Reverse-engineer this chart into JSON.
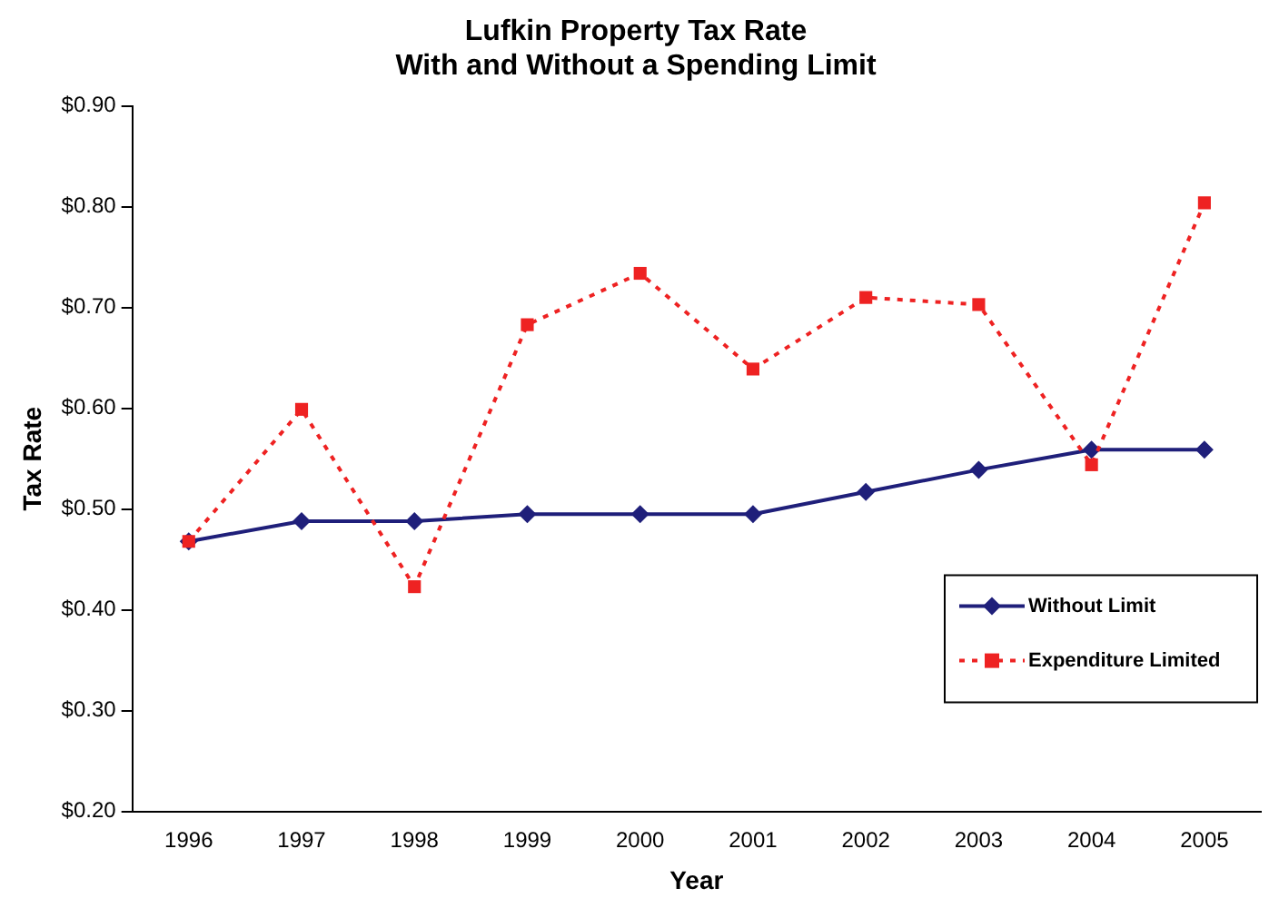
{
  "chart_data": {
    "type": "line",
    "title": "Lufkin Property Tax Rate\nWith and Without a Spending Limit",
    "xlabel": "Year",
    "ylabel": "Tax Rate",
    "categories": [
      "1996",
      "1997",
      "1998",
      "1999",
      "2000",
      "2001",
      "2002",
      "2003",
      "2004",
      "2005"
    ],
    "series": [
      {
        "name": "Without Limit",
        "color": "#1f1f7a",
        "marker": "diamond",
        "line_style": "solid",
        "values": [
          0.468,
          0.488,
          0.488,
          0.495,
          0.495,
          0.495,
          0.517,
          0.539,
          0.559,
          0.559
        ]
      },
      {
        "name": "Expenditure Limited",
        "color": "#ee2222",
        "marker": "square",
        "line_style": "dotted",
        "values": [
          0.468,
          0.599,
          0.423,
          0.683,
          0.734,
          0.639,
          0.71,
          0.703,
          0.544,
          0.804
        ]
      }
    ],
    "ylim": [
      0.2,
      0.9
    ],
    "yticks": [
      {
        "value": 0.2,
        "label": "$0.20"
      },
      {
        "value": 0.3,
        "label": "$0.30"
      },
      {
        "value": 0.4,
        "label": "$0.40"
      },
      {
        "value": 0.5,
        "label": "$0.50"
      },
      {
        "value": 0.6,
        "label": "$0.60"
      },
      {
        "value": 0.7,
        "label": "$0.70"
      },
      {
        "value": 0.8,
        "label": "$0.80"
      },
      {
        "value": 0.9,
        "label": "$0.90"
      }
    ],
    "grid": false,
    "legend": "bottom right"
  }
}
